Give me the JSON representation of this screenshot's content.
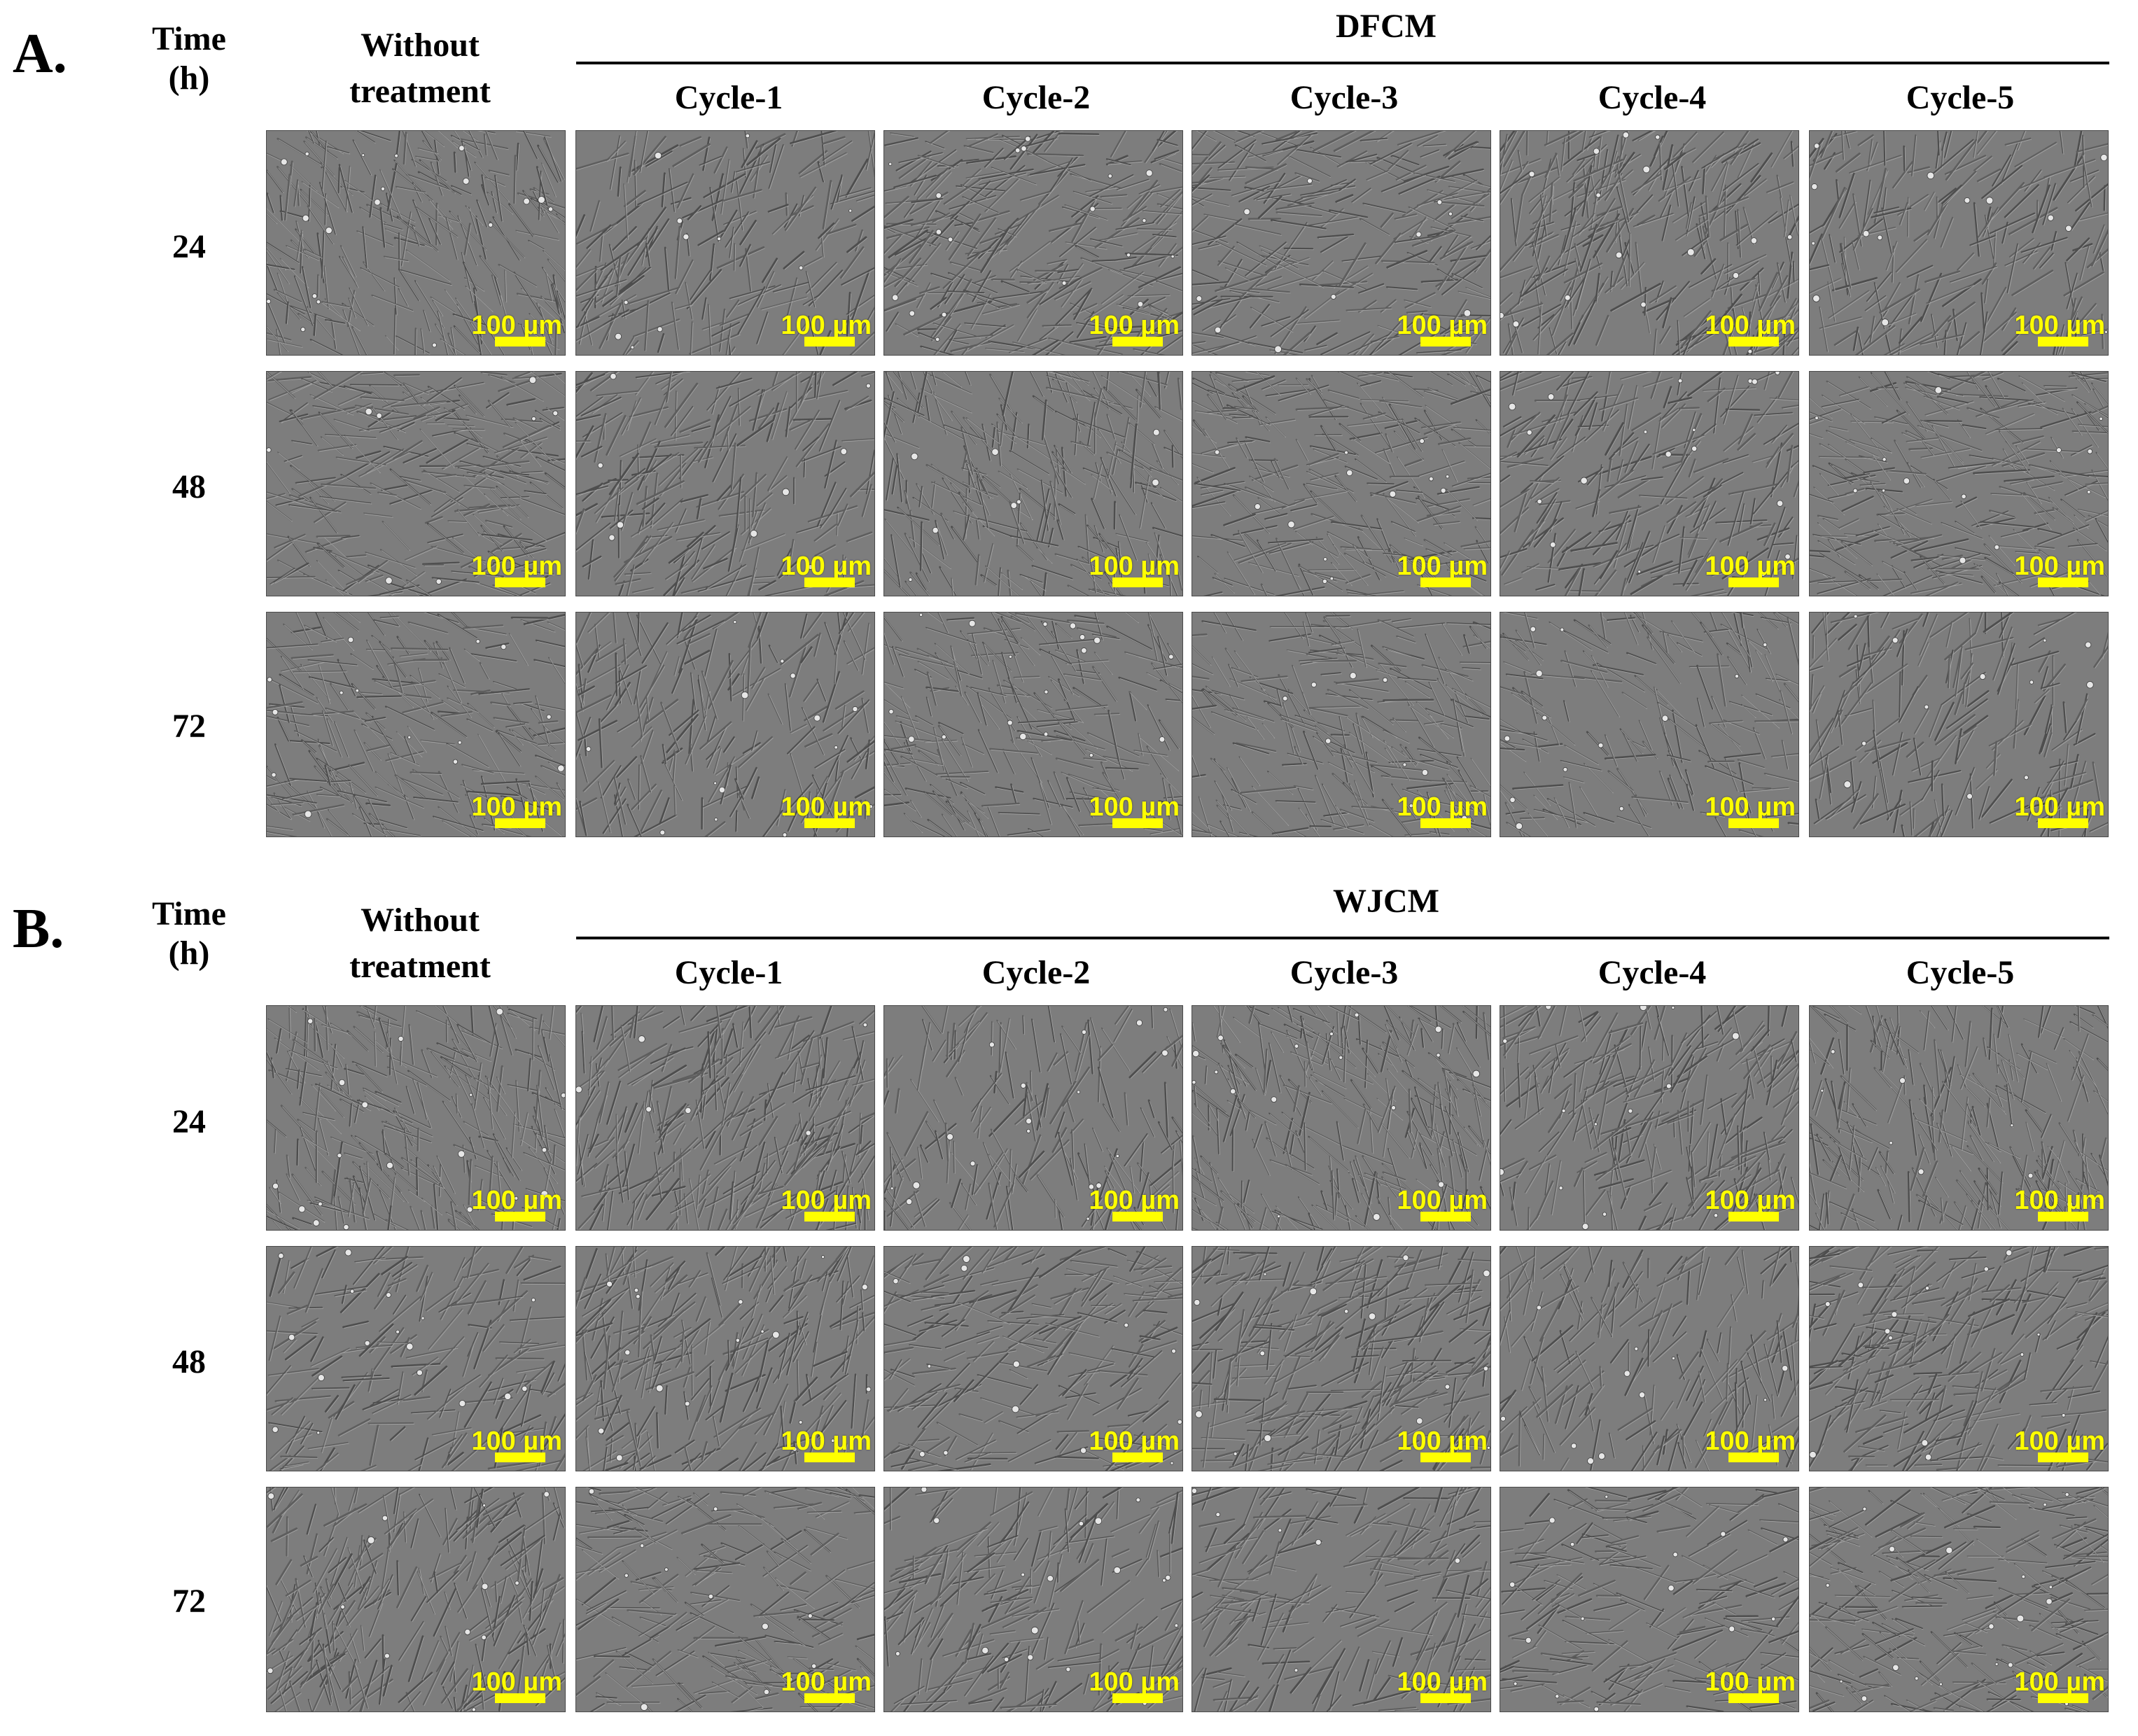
{
  "panels": [
    {
      "id": "A",
      "letter": "A.",
      "time_label": [
        "Time",
        "(h)"
      ],
      "control_label": [
        "Without",
        "treatment"
      ],
      "group_label": "DFCM",
      "cycles": [
        "Cycle-1",
        "Cycle-2",
        "Cycle-3",
        "Cycle-4",
        "Cycle-5"
      ],
      "rows": [
        "24",
        "48",
        "72"
      ]
    },
    {
      "id": "B",
      "letter": "B.",
      "time_label": [
        "Time",
        "(h)"
      ],
      "control_label": [
        "Without",
        "treatment"
      ],
      "group_label": "WJCM",
      "cycles": [
        "Cycle-1",
        "Cycle-2",
        "Cycle-3",
        "Cycle-4",
        "Cycle-5"
      ],
      "rows": [
        "24",
        "48",
        "72"
      ]
    }
  ],
  "scale_bar_label": "100 µm",
  "colors": {
    "scale_bar": "#ffff00",
    "image_background": "#7c7c7c",
    "text": "#000000"
  }
}
